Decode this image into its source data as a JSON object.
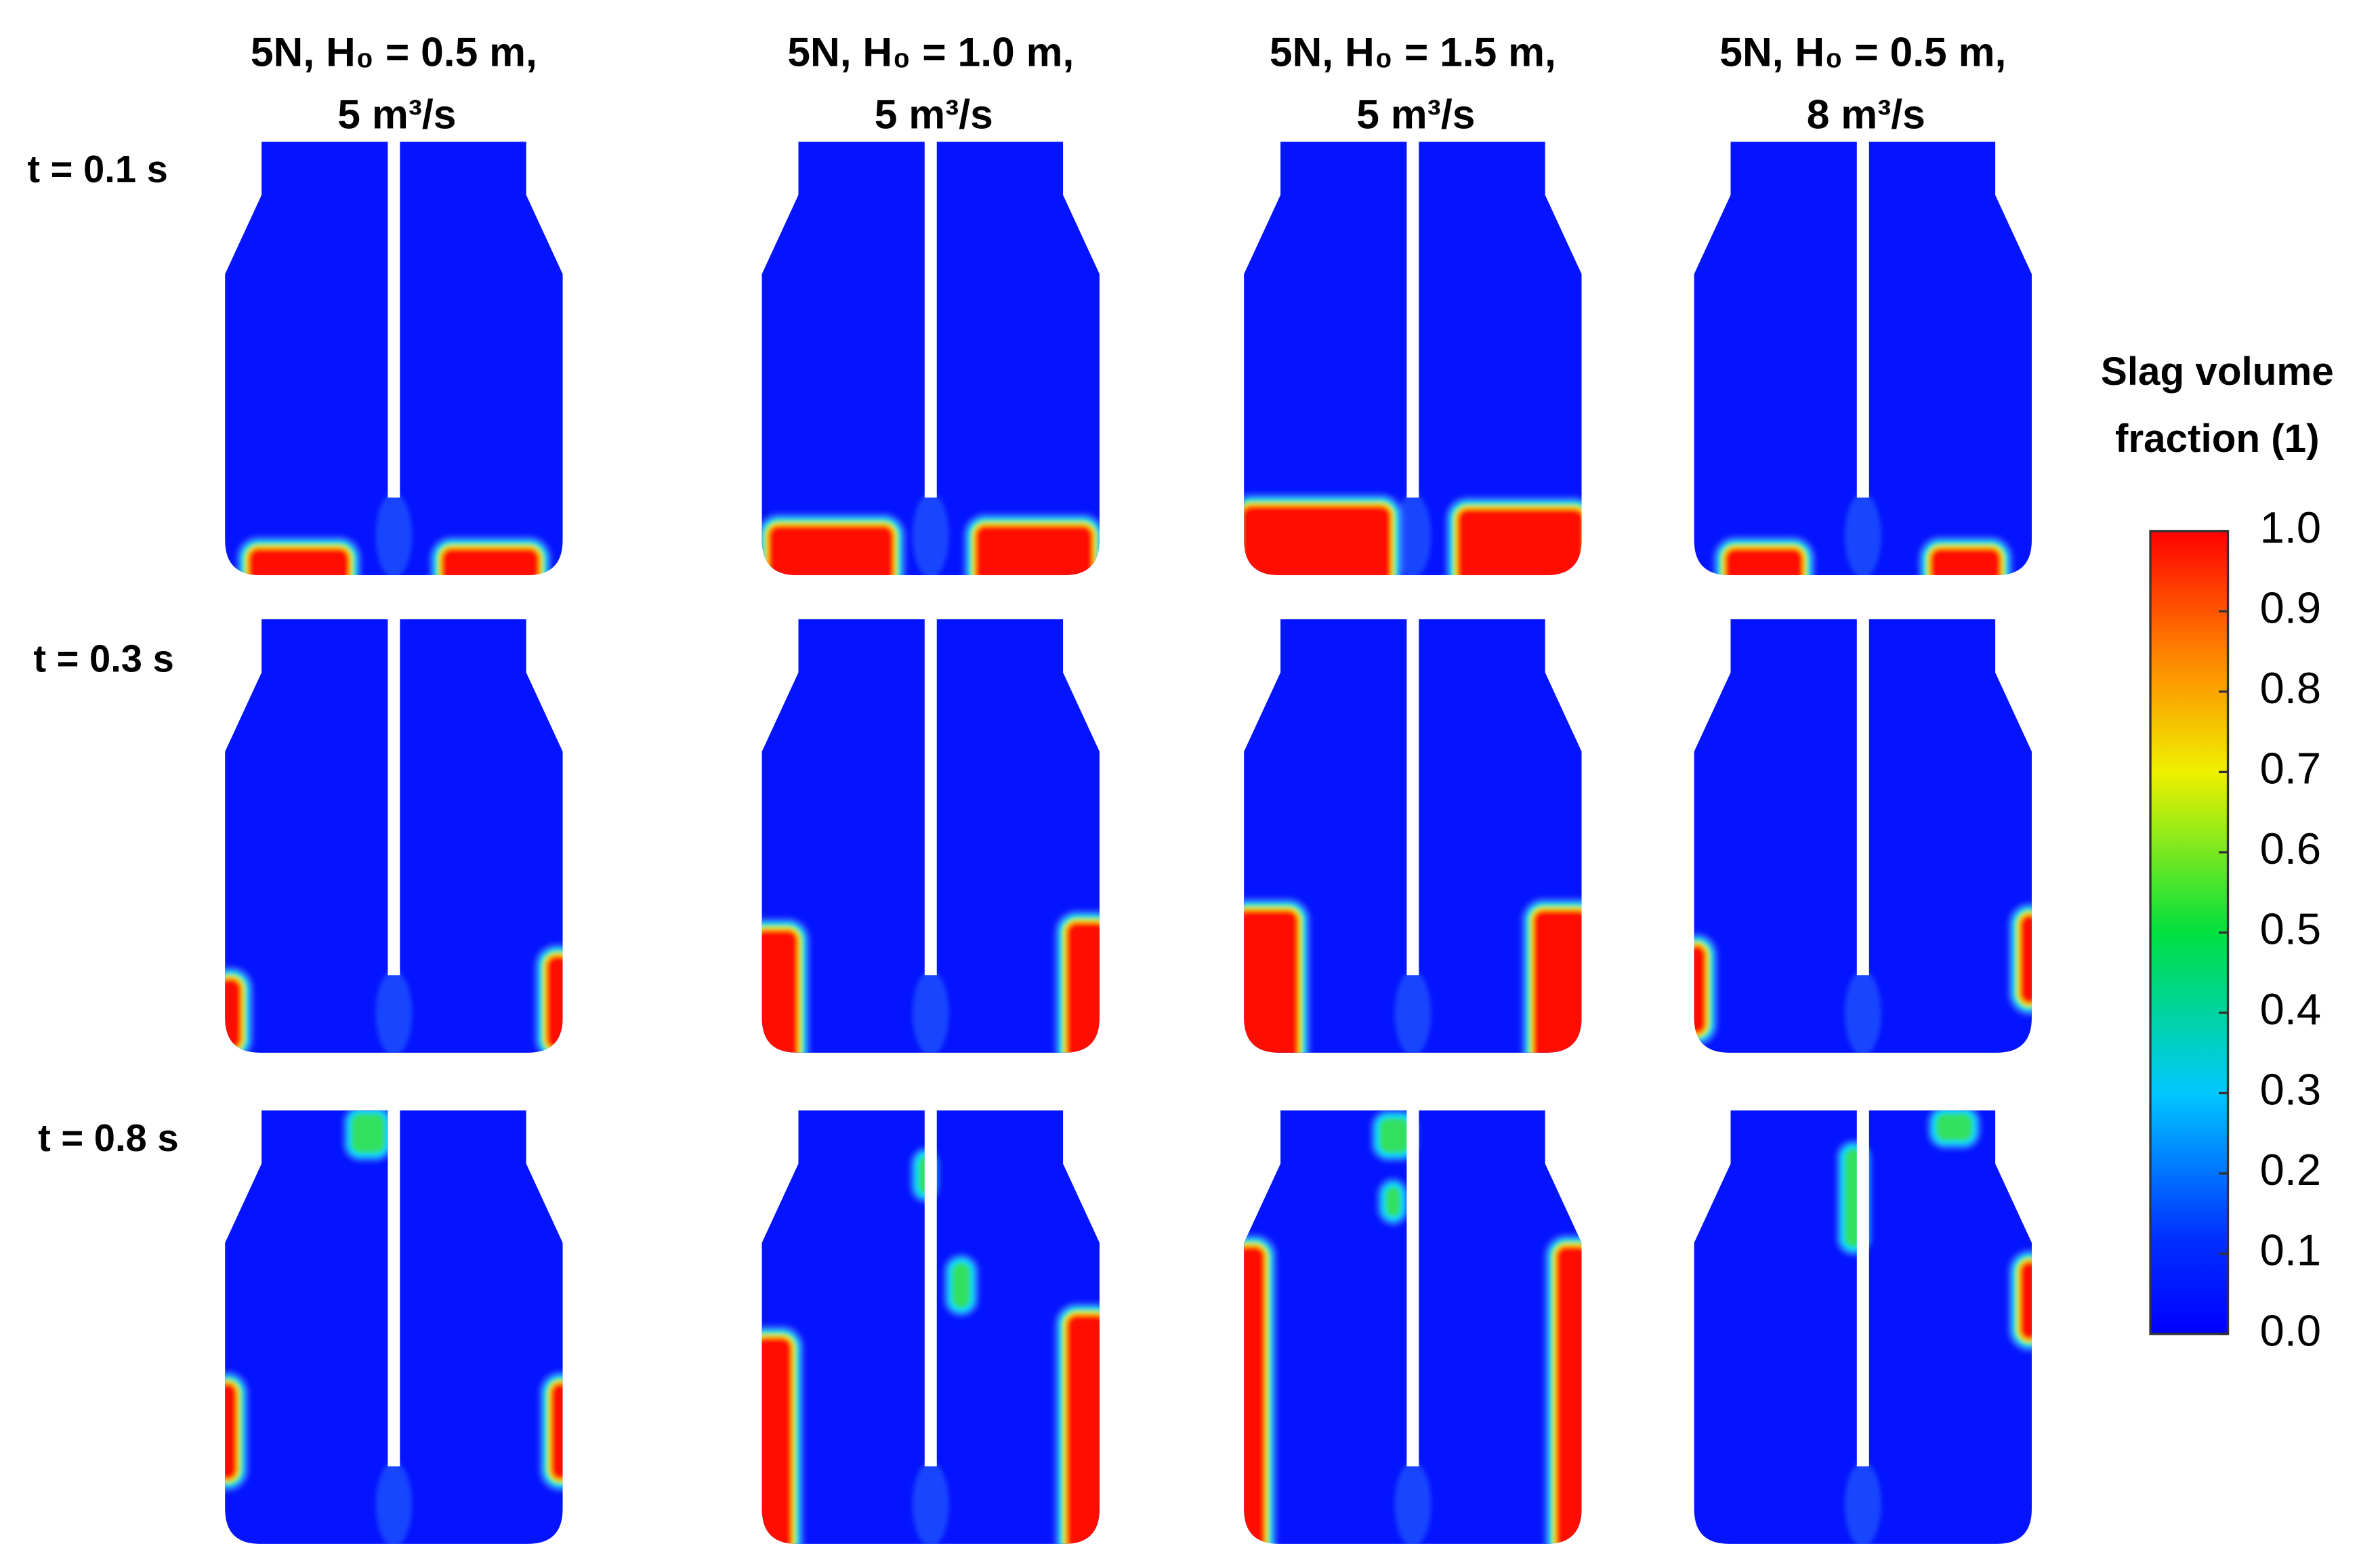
{
  "columns": [
    {
      "line1": "5N, H₀ = 0.5 m,",
      "line2": "5 m³/s"
    },
    {
      "line1": "5N, H₀ = 1.0 m,",
      "line2": "5 m³/s"
    },
    {
      "line1": "5N, H₀ = 1.5 m,",
      "line2": "5 m³/s"
    },
    {
      "line1": "5N, H₀ = 0.5 m,",
      "line2": "8 m³/s"
    }
  ],
  "rows": [
    "t = 0.1 s",
    "t = 0.3 s",
    "t = 0.8 s"
  ],
  "colorbar": {
    "title": [
      "Slag volume",
      "fraction (1)"
    ],
    "ticks": [
      "1.0",
      "0.9",
      "0.8",
      "0.7",
      "0.6",
      "0.5",
      "0.4",
      "0.3",
      "0.2",
      "0.1",
      "0.0"
    ]
  }
}
